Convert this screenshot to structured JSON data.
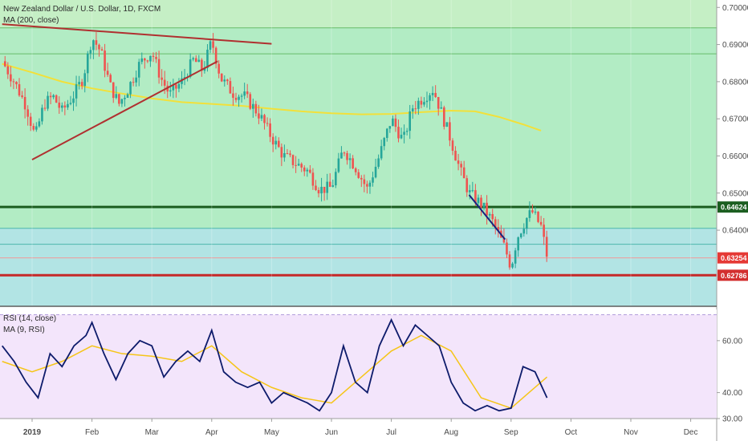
{
  "chart_data": {
    "type": "candlestick",
    "title": "New Zealand Dollar / U.S. Dollar, 1D, FXCM",
    "indicator_label": "MA (200, close)",
    "x_axis": {
      "months": [
        "2019",
        "Feb",
        "Mar",
        "Apr",
        "May",
        "Jun",
        "Jul",
        "Aug",
        "Sep",
        "Oct",
        "Nov",
        "Dec"
      ],
      "month_index": [
        0,
        1,
        2,
        3,
        4,
        5,
        6,
        7,
        8,
        9,
        10,
        11
      ]
    },
    "price_axis": {
      "ylim": [
        0.6195,
        0.702
      ],
      "ticks": [
        "0.70000",
        "0.69000",
        "0.68000",
        "0.67000",
        "0.66000",
        "0.65000",
        "0.64000"
      ],
      "tick_values": [
        0.7,
        0.69,
        0.68,
        0.67,
        0.66,
        0.65,
        0.64
      ]
    },
    "price_tags": [
      {
        "label": "0.64624",
        "value": 0.64624,
        "color": "#1b5e20"
      },
      {
        "label": "0.63254",
        "value": 0.63254,
        "color": "#e53935"
      },
      {
        "label": "0.62786",
        "value": 0.62786,
        "color": "#d32f2f"
      }
    ],
    "horizontal_lines": [
      {
        "value": 0.6945,
        "color": "#66bb6a",
        "width": 1
      },
      {
        "value": 0.6875,
        "color": "#66bb6a",
        "width": 1
      },
      {
        "value": 0.64624,
        "color": "#1b5e20",
        "width": 3
      },
      {
        "value": 0.6405,
        "color": "#4db6ac",
        "width": 1
      },
      {
        "value": 0.6362,
        "color": "#4db6ac",
        "width": 1
      },
      {
        "value": 0.63254,
        "color": "#ef9a9a",
        "width": 1
      },
      {
        "value": 0.62786,
        "color": "#c62828",
        "width": 3
      }
    ],
    "zones": [
      {
        "from": 0.6945,
        "to": 0.702,
        "color": "#c5efc5"
      },
      {
        "from": 0.6405,
        "to": 0.6945,
        "color": "#b2ecc4"
      },
      {
        "from": 0.6195,
        "to": 0.6405,
        "color": "#b2e4e4"
      }
    ],
    "trendlines": [
      {
        "from": [
          -0.5,
          0.6955
        ],
        "to": [
          4.0,
          0.6902
        ],
        "color": "#b03030"
      },
      {
        "from": [
          0.0,
          0.659
        ],
        "to": [
          3.1,
          0.6855
        ],
        "color": "#b03030"
      },
      {
        "from": [
          7.3,
          0.6495
        ],
        "to": [
          7.9,
          0.6375
        ],
        "color": "#1a237e"
      }
    ],
    "moving_average": {
      "name": "MA (200, close)",
      "color": "#f2e03a",
      "points": [
        [
          -0.5,
          0.6848
        ],
        [
          0.0,
          0.6825
        ],
        [
          0.5,
          0.68
        ],
        [
          1.0,
          0.6782
        ],
        [
          1.5,
          0.6768
        ],
        [
          2.0,
          0.6755
        ],
        [
          2.5,
          0.6745
        ],
        [
          3.0,
          0.674
        ],
        [
          3.5,
          0.6735
        ],
        [
          4.0,
          0.6727
        ],
        [
          4.5,
          0.672
        ],
        [
          5.0,
          0.6715
        ],
        [
          5.5,
          0.6712
        ],
        [
          6.0,
          0.6713
        ],
        [
          6.5,
          0.6718
        ],
        [
          7.0,
          0.6722
        ],
        [
          7.4,
          0.672
        ],
        [
          7.8,
          0.6705
        ],
        [
          8.2,
          0.6685
        ],
        [
          8.5,
          0.6668
        ]
      ]
    },
    "close_path": [
      [
        -0.5,
        0.6855
      ],
      [
        -0.3,
        0.68
      ],
      [
        -0.1,
        0.6735
      ],
      [
        0.05,
        0.665
      ],
      [
        0.2,
        0.674
      ],
      [
        0.35,
        0.676
      ],
      [
        0.5,
        0.672
      ],
      [
        0.7,
        0.6765
      ],
      [
        0.85,
        0.681
      ],
      [
        1.0,
        0.692
      ],
      [
        1.15,
        0.688
      ],
      [
        1.3,
        0.679
      ],
      [
        1.45,
        0.674
      ],
      [
        1.6,
        0.678
      ],
      [
        1.8,
        0.685
      ],
      [
        2.0,
        0.688
      ],
      [
        2.15,
        0.681
      ],
      [
        2.3,
        0.6765
      ],
      [
        2.5,
        0.68
      ],
      [
        2.7,
        0.686
      ],
      [
        2.85,
        0.683
      ],
      [
        3.0,
        0.691
      ],
      [
        3.15,
        0.681
      ],
      [
        3.35,
        0.677
      ],
      [
        3.55,
        0.676
      ],
      [
        3.8,
        0.671
      ],
      [
        4.0,
        0.665
      ],
      [
        4.2,
        0.66
      ],
      [
        4.4,
        0.658
      ],
      [
        4.6,
        0.656
      ],
      [
        4.8,
        0.651
      ],
      [
        5.0,
        0.6515
      ],
      [
        5.2,
        0.662
      ],
      [
        5.4,
        0.657
      ],
      [
        5.6,
        0.651
      ],
      [
        5.8,
        0.66
      ],
      [
        6.0,
        0.67
      ],
      [
        6.2,
        0.664
      ],
      [
        6.35,
        0.673
      ],
      [
        6.55,
        0.676
      ],
      [
        6.7,
        0.678
      ],
      [
        6.85,
        0.671
      ],
      [
        7.0,
        0.664
      ],
      [
        7.15,
        0.656
      ],
      [
        7.3,
        0.65
      ],
      [
        7.5,
        0.647
      ],
      [
        7.7,
        0.642
      ],
      [
        7.9,
        0.635
      ],
      [
        8.0,
        0.63
      ],
      [
        8.1,
        0.638
      ],
      [
        8.25,
        0.643
      ],
      [
        8.35,
        0.645
      ],
      [
        8.5,
        0.641
      ],
      [
        8.6,
        0.633
      ]
    ],
    "rsi": {
      "label": "RSI (14, close)",
      "ma_label": "MA (9, RSI)",
      "ylim": [
        30,
        72
      ],
      "ticks": [
        "60.00",
        "40.00",
        "30.00"
      ],
      "tick_values": [
        60,
        40,
        30
      ],
      "band": [
        30,
        70
      ],
      "rsi_points": [
        [
          -0.5,
          58
        ],
        [
          -0.3,
          52
        ],
        [
          -0.1,
          44
        ],
        [
          0.1,
          38
        ],
        [
          0.3,
          55
        ],
        [
          0.5,
          50
        ],
        [
          0.7,
          58
        ],
        [
          0.9,
          62
        ],
        [
          1.0,
          67
        ],
        [
          1.2,
          55
        ],
        [
          1.4,
          45
        ],
        [
          1.6,
          55
        ],
        [
          1.8,
          60
        ],
        [
          2.0,
          58
        ],
        [
          2.2,
          46
        ],
        [
          2.4,
          52
        ],
        [
          2.6,
          56
        ],
        [
          2.8,
          52
        ],
        [
          3.0,
          64
        ],
        [
          3.2,
          48
        ],
        [
          3.4,
          44
        ],
        [
          3.6,
          42
        ],
        [
          3.8,
          44
        ],
        [
          4.0,
          36
        ],
        [
          4.2,
          40
        ],
        [
          4.4,
          38
        ],
        [
          4.6,
          36
        ],
        [
          4.8,
          33
        ],
        [
          5.0,
          40
        ],
        [
          5.2,
          58
        ],
        [
          5.4,
          44
        ],
        [
          5.6,
          40
        ],
        [
          5.8,
          58
        ],
        [
          6.0,
          68
        ],
        [
          6.2,
          58
        ],
        [
          6.4,
          66
        ],
        [
          6.6,
          62
        ],
        [
          6.8,
          58
        ],
        [
          7.0,
          44
        ],
        [
          7.2,
          36
        ],
        [
          7.4,
          33
        ],
        [
          7.6,
          35
        ],
        [
          7.8,
          33
        ],
        [
          8.0,
          34
        ],
        [
          8.2,
          50
        ],
        [
          8.4,
          48
        ],
        [
          8.6,
          38
        ]
      ],
      "ma_points": [
        [
          -0.5,
          52
        ],
        [
          0.0,
          48
        ],
        [
          0.5,
          52
        ],
        [
          1.0,
          58
        ],
        [
          1.5,
          55
        ],
        [
          2.0,
          54
        ],
        [
          2.5,
          52
        ],
        [
          3.0,
          58
        ],
        [
          3.5,
          48
        ],
        [
          4.0,
          42
        ],
        [
          4.5,
          38
        ],
        [
          5.0,
          36
        ],
        [
          5.5,
          46
        ],
        [
          6.0,
          56
        ],
        [
          6.5,
          62
        ],
        [
          7.0,
          56
        ],
        [
          7.5,
          38
        ],
        [
          8.0,
          34
        ],
        [
          8.3,
          40
        ],
        [
          8.6,
          46
        ]
      ]
    }
  }
}
